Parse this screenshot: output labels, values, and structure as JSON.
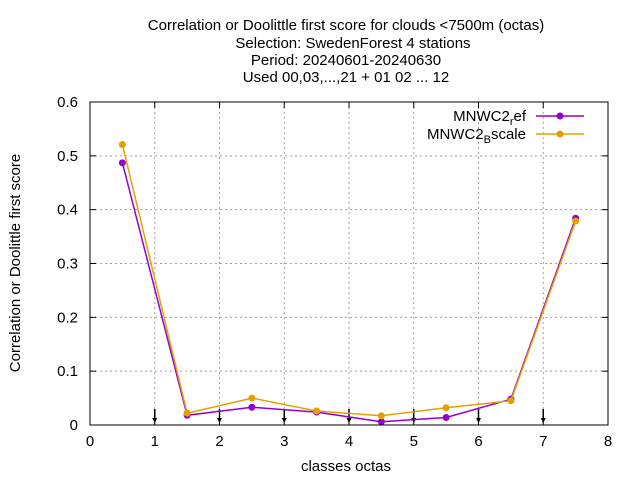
{
  "chart_data": {
    "type": "line",
    "title_lines": [
      "Correlation or Doolittle first score  for clouds <7500m (octas)",
      "Selection: SwedenForest      4 stations",
      "Period: 20240601-20240630",
      "Used 00,03,...,21 + 01 02 ... 12"
    ],
    "xlabel": "classes octas",
    "ylabel": "Correlation or Doolittle first score",
    "xlim": [
      0,
      8
    ],
    "ylim": [
      0,
      0.6
    ],
    "x_ticks": [
      0,
      1,
      2,
      3,
      4,
      5,
      6,
      7,
      8
    ],
    "x_tick_labels": [
      "0",
      "1",
      "2",
      "3",
      "4",
      "5",
      "6",
      "7",
      "8"
    ],
    "y_ticks": [
      0,
      0.1,
      0.2,
      0.3,
      0.4,
      0.5,
      0.6
    ],
    "y_tick_labels": [
      "0",
      "0.1",
      "0.2",
      "0.3",
      "0.4",
      "0.5",
      "0.6"
    ],
    "grid": true,
    "legend_position": "top-right",
    "class_markers_x": [
      1,
      2,
      3,
      4,
      5,
      6,
      7
    ],
    "series": [
      {
        "name": "MNWC2_ref",
        "legend_main": "MNWC2",
        "legend_sub": "r",
        "legend_tail": "ef",
        "color": "#9400d3",
        "x": [
          0.5,
          1.5,
          2.5,
          3.5,
          4.5,
          5.5,
          6.5,
          7.5
        ],
        "y": [
          0.487,
          0.018,
          0.033,
          0.024,
          0.006,
          0.014,
          0.048,
          0.384
        ]
      },
      {
        "name": "MNWC2_Bscale",
        "legend_main": "MNWC2",
        "legend_sub": "B",
        "legend_tail": "scale",
        "color": "#e69f00",
        "x": [
          0.5,
          1.5,
          2.5,
          3.5,
          4.5,
          5.5,
          6.5,
          7.5
        ],
        "y": [
          0.521,
          0.022,
          0.05,
          0.026,
          0.017,
          0.032,
          0.045,
          0.379
        ]
      }
    ]
  }
}
